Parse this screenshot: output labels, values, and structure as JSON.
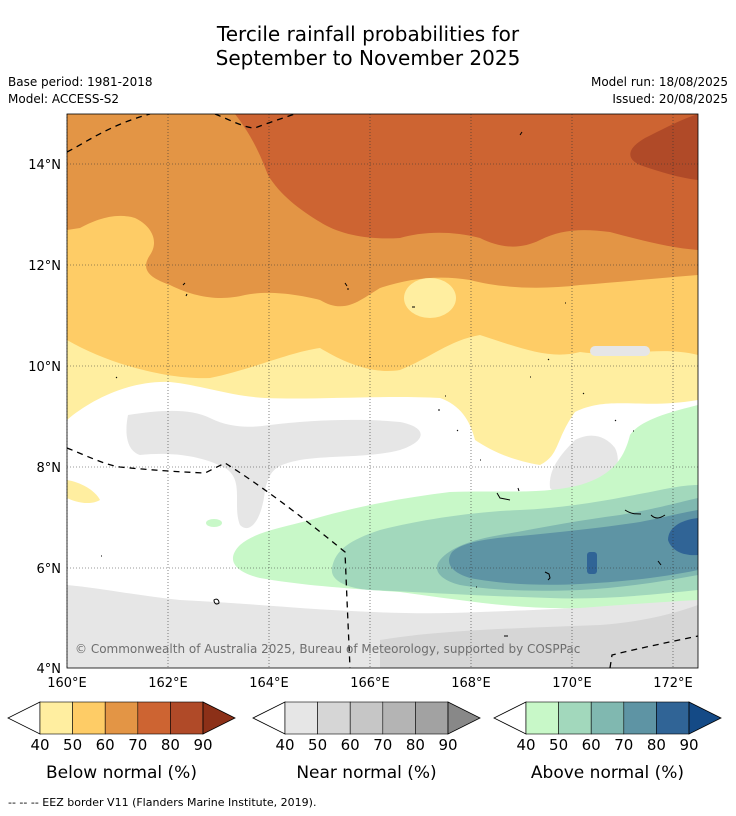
{
  "title_line1": "Tercile rainfall probabilities for",
  "title_line2": "September to November 2025",
  "base_period": "Base period: 1981-2018",
  "model": "Model: ACCESS-S2",
  "model_run": "Model run: 18/08/2025",
  "issued": "Issued: 20/08/2025",
  "copyright": "© Commonwealth of Australia 2025, Bureau of Meteorology, supported by COSPPac",
  "lat_ticks": [
    "14°N",
    "12°N",
    "10°N",
    "8°N",
    "6°N",
    "4°N"
  ],
  "lon_ticks": [
    "160°E",
    "162°E",
    "164°E",
    "166°E",
    "168°E",
    "170°E",
    "172°E"
  ],
  "colorbars": [
    {
      "label": "Below normal (%)",
      "ticks": [
        "40",
        "50",
        "60",
        "70",
        "80",
        "90"
      ],
      "colors": [
        "#ffeea0",
        "#fecc66",
        "#e39545",
        "#cd6432",
        "#b04a28",
        "#8c3018"
      ]
    },
    {
      "label": "Near normal (%)",
      "ticks": [
        "40",
        "50",
        "60",
        "70",
        "80",
        "90"
      ],
      "colors": [
        "#e6e6e6",
        "#d6d6d6",
        "#c6c6c6",
        "#b4b4b4",
        "#a2a2a2",
        "#888888"
      ]
    },
    {
      "label": "Above normal (%)",
      "ticks": [
        "40",
        "50",
        "60",
        "70",
        "80",
        "90"
      ],
      "colors": [
        "#c8f8c8",
        "#a2d8bc",
        "#80b8b0",
        "#5e94a4",
        "#306496",
        "#144a86"
      ]
    }
  ],
  "footnote": "-- -- -- EEZ border V11 (Flanders Marine Institute, 2019)."
}
